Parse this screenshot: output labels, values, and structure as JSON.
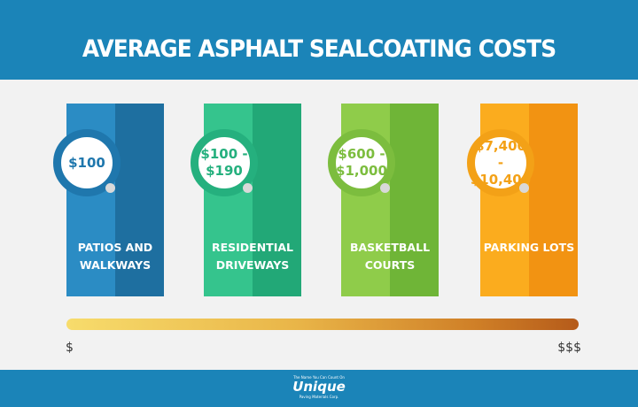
{
  "title": "AVERAGE ASPHALT SEALCOATING COSTS",
  "cards": [
    {
      "price": "$100",
      "label": "PATIOS AND\nWALKWAYS",
      "color_left": "#2b8cc4",
      "color_right": "#1e6fa0",
      "accent": "#1f77ad"
    },
    {
      "price": "$100 -\n$190",
      "label": "RESIDENTIAL\nDRIVEWAYS",
      "color_left": "#35c48d",
      "color_right": "#22a877",
      "accent": "#25b07e"
    },
    {
      "price": "$600 -\n$1,000",
      "label": "BASKETBALL\nCOURTS",
      "color_left": "#8fcc4a",
      "color_right": "#6fb537",
      "accent": "#7cbd3e"
    },
    {
      "price": "$7,400 -\n$10,400",
      "label": "PARKING LOTS",
      "color_left": "#fbac1e",
      "color_right": "#f29312",
      "accent": "#f3a117"
    }
  ],
  "scale": {
    "low": "$",
    "high": "$$$"
  },
  "logo": {
    "tagline": "The Name You Can Count On",
    "name": "Unique",
    "subtitle": "Paving Materials Corp."
  },
  "colors": {
    "header": "#1b84b8",
    "background": "#f2f2f2"
  }
}
